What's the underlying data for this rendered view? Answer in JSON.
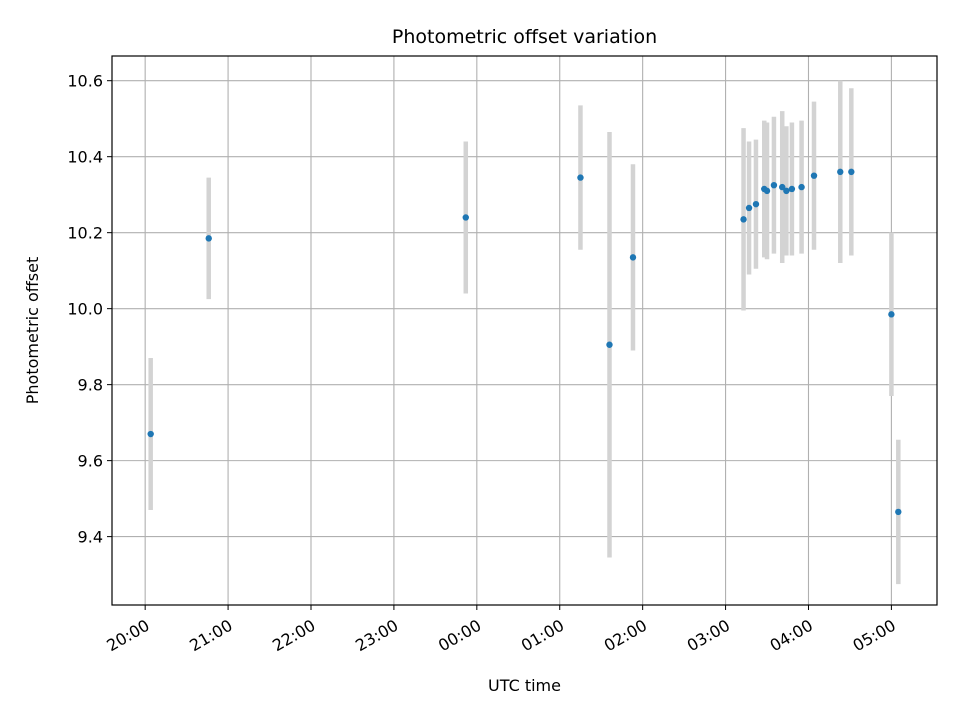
{
  "chart_data": {
    "type": "scatter",
    "title": "Photometric offset variation",
    "xlabel": "UTC time",
    "ylabel": "Photometric offset",
    "x_tick_labels": [
      "20:00",
      "21:00",
      "22:00",
      "23:00",
      "00:00",
      "01:00",
      "02:00",
      "03:00",
      "04:00",
      "05:00"
    ],
    "x_tick_hours": [
      0,
      1,
      2,
      3,
      4,
      5,
      6,
      7,
      8,
      9
    ],
    "xlim_hours": [
      -0.4,
      9.55
    ],
    "y_ticks": [
      9.4,
      9.6,
      9.8,
      10.0,
      10.2,
      10.4,
      10.6
    ],
    "y_tick_labels": [
      "9.4",
      "9.6",
      "9.8",
      "10.0",
      "10.2",
      "10.4",
      "10.6"
    ],
    "ylim": [
      9.22,
      10.665
    ],
    "grid": true,
    "colors": {
      "point": "#1f77b4",
      "errorbar": "#d3d3d3",
      "grid": "#b0b0b0"
    },
    "points": [
      {
        "time": "20:04",
        "y": 9.67,
        "err": 0.2
      },
      {
        "time": "20:46",
        "y": 10.185,
        "err": 0.16
      },
      {
        "time": "23:52",
        "y": 10.24,
        "err": 0.2
      },
      {
        "time": "01:15",
        "y": 10.345,
        "err": 0.19
      },
      {
        "time": "01:36",
        "y": 9.905,
        "err": 0.56
      },
      {
        "time": "01:53",
        "y": 10.135,
        "err": 0.245
      },
      {
        "time": "03:13",
        "y": 10.235,
        "err": 0.24
      },
      {
        "time": "03:17",
        "y": 10.265,
        "err": 0.175
      },
      {
        "time": "03:22",
        "y": 10.275,
        "err": 0.17
      },
      {
        "time": "03:28",
        "y": 10.315,
        "err": 0.18
      },
      {
        "time": "03:30",
        "y": 10.31,
        "err": 0.18
      },
      {
        "time": "03:35",
        "y": 10.325,
        "err": 0.18
      },
      {
        "time": "03:41",
        "y": 10.32,
        "err": 0.2
      },
      {
        "time": "03:44",
        "y": 10.31,
        "err": 0.17
      },
      {
        "time": "03:48",
        "y": 10.315,
        "err": 0.175
      },
      {
        "time": "03:55",
        "y": 10.32,
        "err": 0.175
      },
      {
        "time": "04:04",
        "y": 10.35,
        "err": 0.195
      },
      {
        "time": "04:23",
        "y": 10.36,
        "err": 0.24
      },
      {
        "time": "04:31",
        "y": 10.36,
        "err": 0.22
      },
      {
        "time": "05:00",
        "y": 9.985,
        "err": 0.215
      },
      {
        "time": "05:05",
        "y": 9.465,
        "err": 0.19
      }
    ]
  }
}
